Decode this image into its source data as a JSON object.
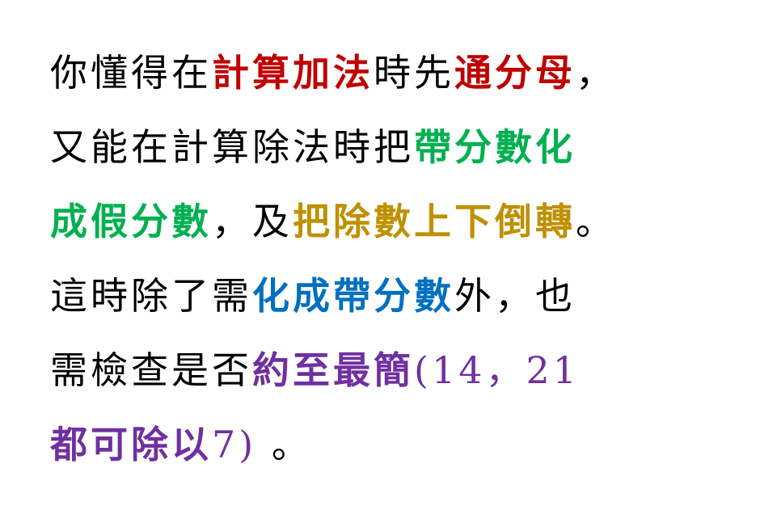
{
  "lines": [
    {
      "segments": [
        {
          "text": "你懂得在",
          "style": "normal",
          "color": "#000000"
        },
        {
          "text": "計算加法",
          "style": "bold",
          "color": "#c00000"
        },
        {
          "text": "時先",
          "style": "normal",
          "color": "#000000"
        },
        {
          "text": "通分母",
          "style": "bold",
          "color": "#c00000"
        },
        {
          "text": "，",
          "style": "normal",
          "color": "#000000"
        }
      ]
    },
    {
      "segments": [
        {
          "text": "又能在計算除法時把",
          "style": "normal",
          "color": "#000000"
        },
        {
          "text": "帶分數化",
          "style": "bold",
          "color": "#00b050"
        }
      ]
    },
    {
      "segments": [
        {
          "text": "成假分數",
          "style": "bold",
          "color": "#00b050"
        },
        {
          "text": "，及",
          "style": "normal",
          "color": "#000000"
        },
        {
          "text": "把除數上下倒轉",
          "style": "bold",
          "color": "#bf9000"
        },
        {
          "text": "。",
          "style": "normal",
          "color": "#000000"
        }
      ]
    },
    {
      "segments": [
        {
          "text": "這時除了需",
          "style": "normal",
          "color": "#000000"
        },
        {
          "text": "化成帶分數",
          "style": "bold",
          "color": "#0070c0"
        },
        {
          "text": "外，也",
          "style": "normal",
          "color": "#000000"
        }
      ]
    },
    {
      "segments": [
        {
          "text": "需檢查是否",
          "style": "normal",
          "color": "#000000"
        },
        {
          "text": "約至最簡",
          "style": "bold",
          "color": "#7030a0"
        },
        {
          "text": "(14，21",
          "style": "normal",
          "color": "#7030a0"
        }
      ]
    },
    {
      "segments": [
        {
          "text": "都可除以",
          "style": "bold",
          "color": "#7030a0"
        },
        {
          "text": "7)",
          "style": "normal",
          "color": "#7030a0"
        },
        {
          "text": " 。",
          "style": "normal",
          "color": "#000000"
        }
      ]
    }
  ]
}
